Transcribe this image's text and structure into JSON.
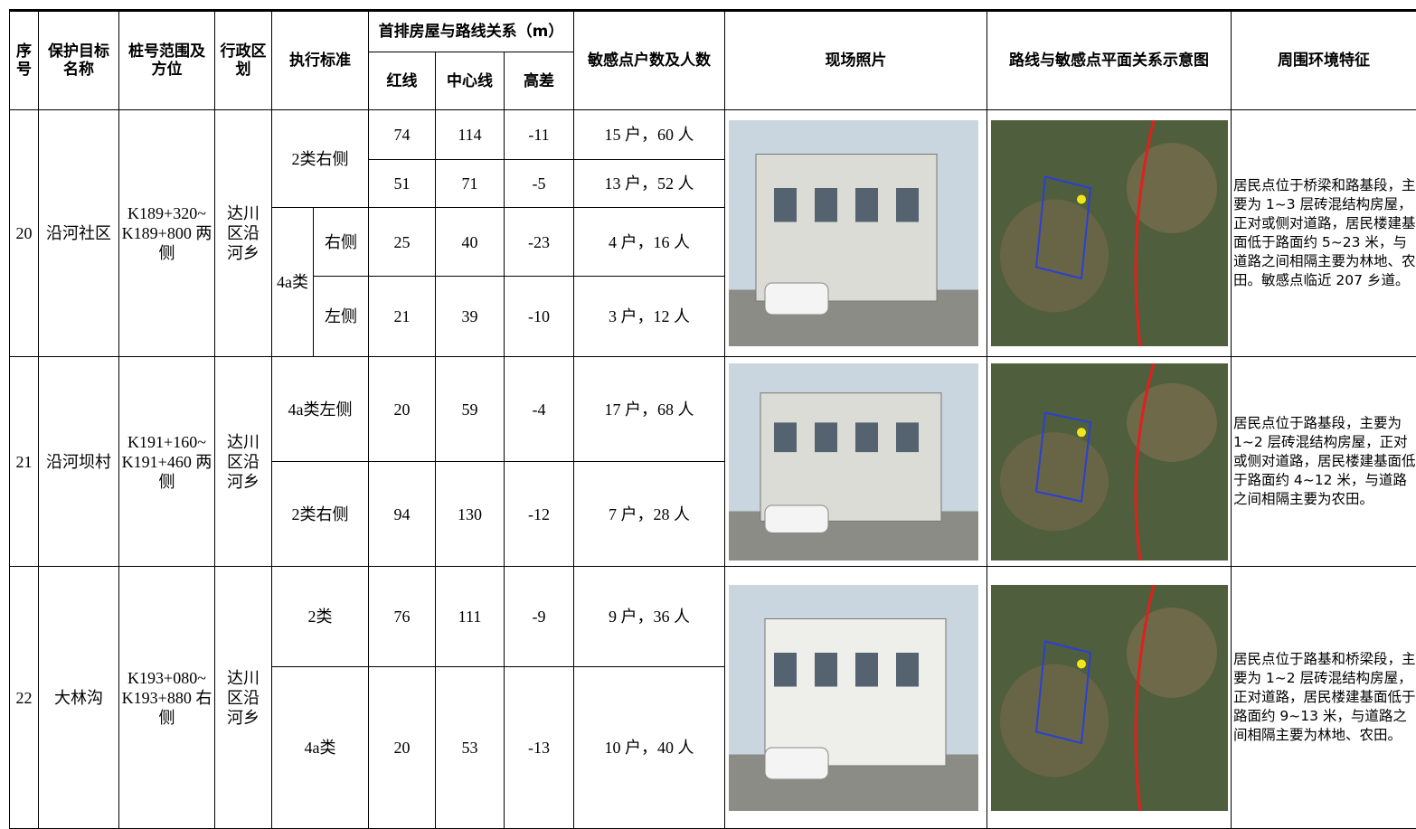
{
  "header": {
    "no": "序号",
    "name": "保护目标名称",
    "station": "桩号范围及方位",
    "admin": "行政区划",
    "standard": "执行标准",
    "relation": "首排房屋与路线关系（m）",
    "red": "红线",
    "center": "中心线",
    "height": "高差",
    "count": "敏感点户数及人数",
    "photo": "现场照片",
    "map": "路线与敏感点平面关系示意图",
    "env": "周围环境特征"
  },
  "groups": [
    {
      "no": "20",
      "name": "沿河社区",
      "station": "K189+320~ K189+800 两侧",
      "admin": "达川区沿河乡",
      "env": "居民点位于桥梁和路基段，主要为 1~3 层砖混结构房屋，正对或侧对道路，居民楼建基面低于路面约 5~23 米，与道路之间相隔主要为林地、农田。敏感点临近 207 乡道。",
      "rows": [
        {
          "standard": "2类右侧",
          "red": 74,
          "center": 114,
          "height": -11,
          "count": "15 户，60 人"
        },
        {
          "red": 51,
          "center": 71,
          "height": -5,
          "count": "13 户，52 人"
        },
        {
          "standard": "4a类",
          "side": "右侧",
          "red": 25,
          "center": 40,
          "height": -23,
          "count": "4 户，16 人"
        },
        {
          "side": "左侧",
          "red": 21,
          "center": 39,
          "height": -10,
          "count": "3 户，12 人"
        }
      ]
    },
    {
      "no": "21",
      "name": "沿河坝村",
      "station": "K191+160~ K191+460 两侧",
      "admin": "达川区沿河乡",
      "env": "居民点位于路基段，主要为 1~2 层砖混结构房屋，正对或侧对道路，居民楼建基面低于路面约 4~12 米，与道路之间相隔主要为农田。",
      "rows": [
        {
          "standard": "4a类左侧",
          "red": 20,
          "center": 59,
          "height": -4,
          "count": "17 户，68 人"
        },
        {
          "standard": "2类右侧",
          "red": 94,
          "center": 130,
          "height": -12,
          "count": "7 户，28 人"
        }
      ]
    },
    {
      "no": "22",
      "name": "大林沟",
      "station": "K193+080~ K193+880 右侧",
      "admin": "达川区沿河乡",
      "env": "居民点位于路基和桥梁段，主要为 1~2 层砖混结构房屋，正对道路，居民楼建基面低于路面约 9~13 米，与道路之间相隔主要为林地、农田。",
      "rows": [
        {
          "standard": "2类",
          "red": 76,
          "center": 111,
          "height": -9,
          "count": "9 户，36 人"
        },
        {
          "standard": "4a类",
          "red": 20,
          "center": 53,
          "height": -13,
          "count": "10 户，40 人"
        }
      ]
    }
  ]
}
